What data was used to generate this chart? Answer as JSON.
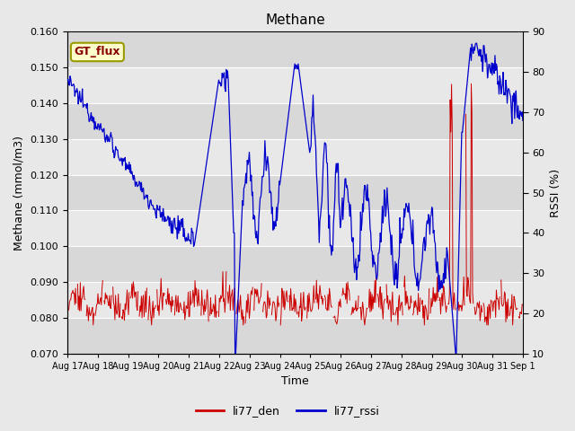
{
  "title": "Methane",
  "ylabel_left": "Methane (mmol/m3)",
  "ylabel_right": "RSSI (%)",
  "xlabel": "Time",
  "ylim_left": [
    0.07,
    0.16
  ],
  "ylim_right": [
    10,
    90
  ],
  "yticks_left": [
    0.07,
    0.08,
    0.09,
    0.1,
    0.11,
    0.12,
    0.13,
    0.14,
    0.15,
    0.16
  ],
  "yticks_right": [
    10,
    20,
    30,
    40,
    50,
    60,
    70,
    80,
    90
  ],
  "color_red": "#cc0000",
  "color_blue": "#0000cc",
  "legend_labels": [
    "li77_den",
    "li77_rssi"
  ],
  "gt_flux_label": "GT_flux",
  "gt_flux_color_bg": "#ffffcc",
  "gt_flux_color_text": "#880000",
  "gt_flux_color_border": "#999900",
  "fig_bg_color": "#e8e8e8",
  "band_light": "#e8e8e8",
  "band_dark": "#d8d8d8",
  "n_points": 672,
  "xtick_labels": [
    "Aug 17",
    "Aug 18",
    "Aug 19",
    "Aug 20",
    "Aug 21",
    "Aug 22",
    "Aug 23",
    "Aug 24",
    "Aug 25",
    "Aug 26",
    "Aug 27",
    "Aug 28",
    "Aug 29",
    "Aug 30",
    "Aug 31",
    "Sep 1"
  ]
}
